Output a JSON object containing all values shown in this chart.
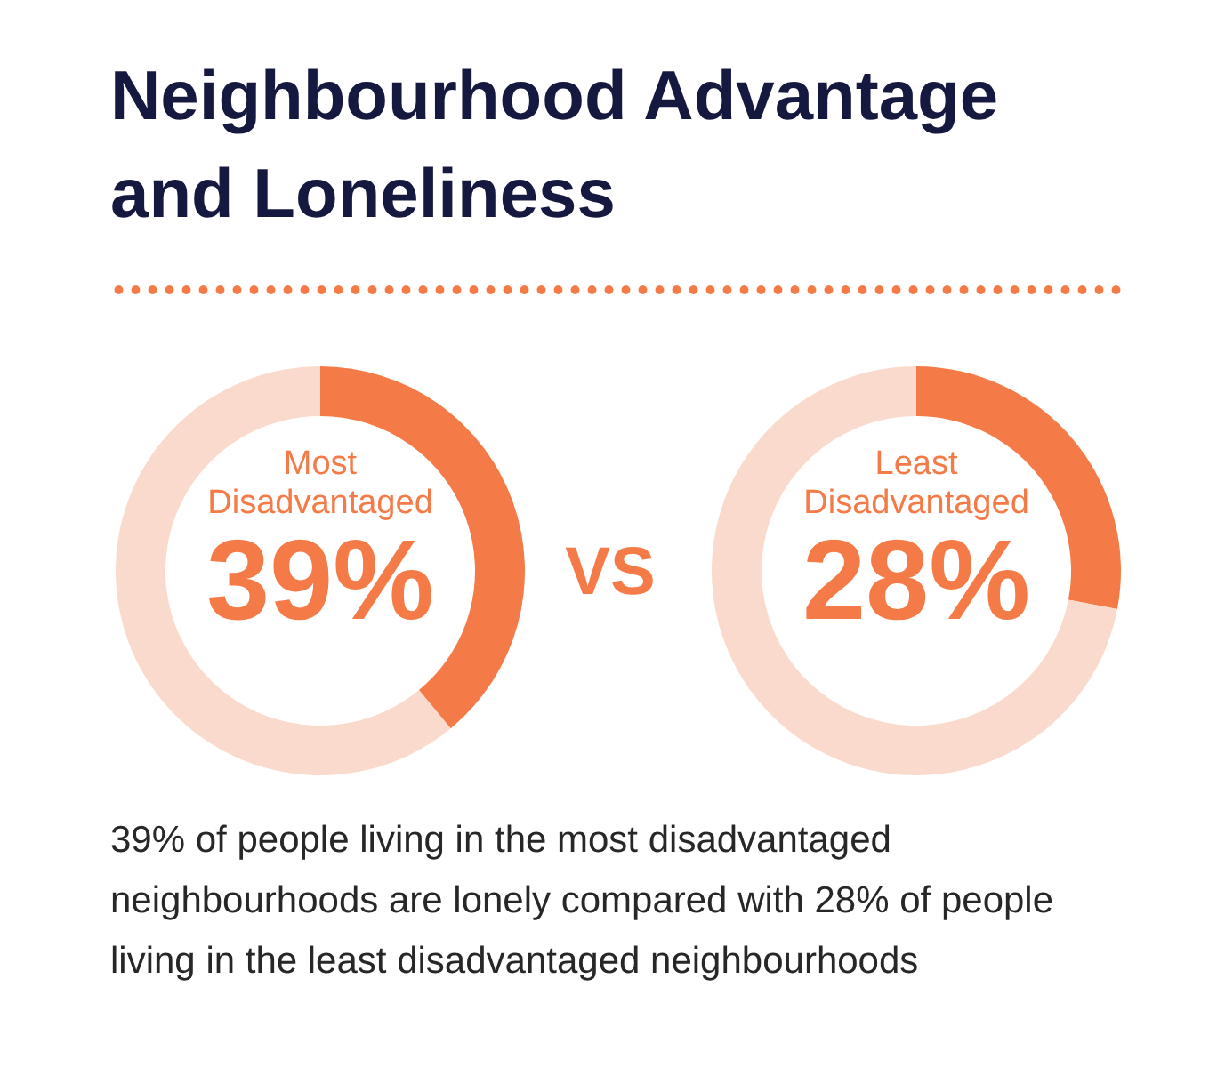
{
  "chart_data": [
    {
      "type": "donut",
      "title": "Neighbourhood Advantage and Loneliness",
      "categories": [
        "Most Disadvantaged",
        null
      ],
      "values": [
        39,
        61
      ],
      "colors": [
        "#f47b47",
        "#fadacc"
      ],
      "value_labels": [
        "39%",
        null
      ],
      "annotations": [
        "VS",
        "39% of people living in the most disadvantaged neighbourhoods are lonely compared with 28% of people living in the least disadvantaged neighbourhoods"
      ]
    },
    {
      "type": "donut",
      "categories": [
        "Least Disadvantaged",
        null
      ],
      "values": [
        28,
        72
      ],
      "colors": [
        "#f47b47",
        "#fadacc"
      ],
      "value_labels": [
        "28%",
        null
      ]
    }
  ]
}
